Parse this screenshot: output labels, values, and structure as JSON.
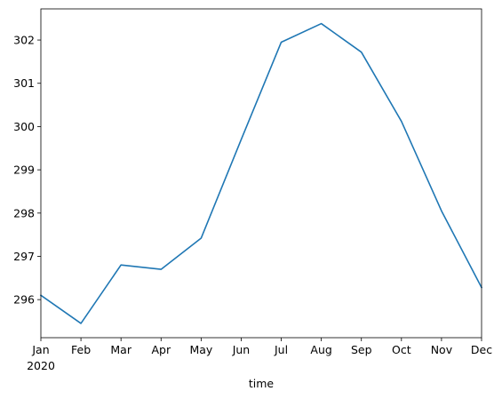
{
  "chart_data": {
    "type": "line",
    "title": "",
    "xlabel": "time",
    "ylabel": "",
    "x": [
      "2020-01",
      "2020-02",
      "2020-03",
      "2020-04",
      "2020-05",
      "2020-06",
      "2020-07",
      "2020-08",
      "2020-09",
      "2020-10",
      "2020-11",
      "2020-12"
    ],
    "x_tick_labels": [
      "Jan",
      "Feb",
      "Mar",
      "Apr",
      "May",
      "Jun",
      "Jul",
      "Aug",
      "Sep",
      "Oct",
      "Nov",
      "Dec"
    ],
    "x_year_label": "2020",
    "series": [
      {
        "values": [
          296.1,
          295.45,
          296.8,
          296.7,
          297.42,
          299.7,
          301.95,
          302.38,
          301.72,
          300.12,
          298.05,
          296.28
        ],
        "color": "#1f77b4"
      }
    ],
    "y_ticks": [
      296,
      297,
      298,
      299,
      300,
      301,
      302
    ],
    "ylim": [
      295.12,
      302.72
    ],
    "grid": false,
    "legend": "none"
  }
}
